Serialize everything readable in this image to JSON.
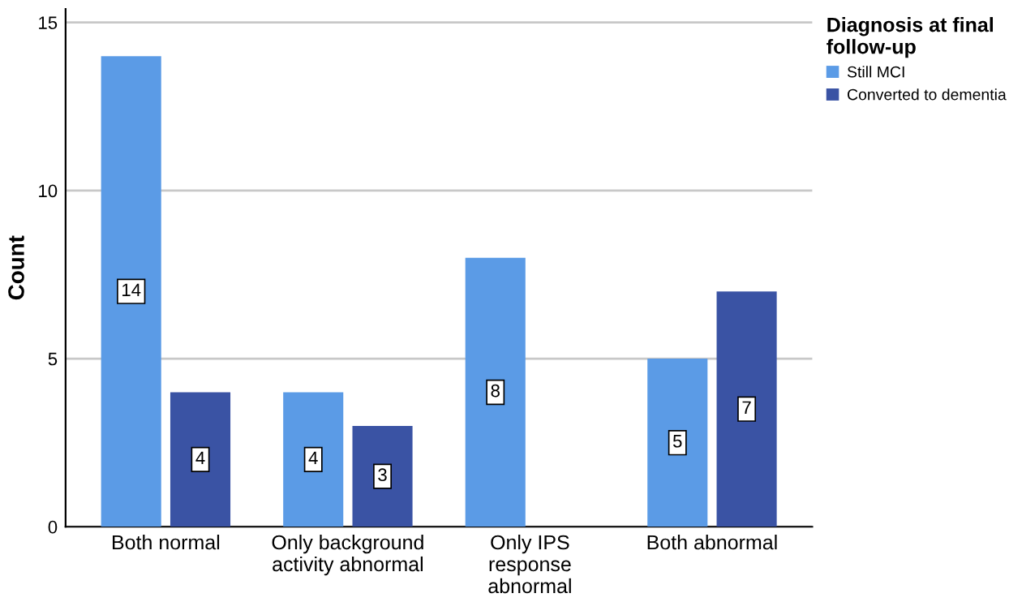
{
  "chart_data": {
    "type": "bar",
    "ylabel": "Count",
    "legend_title": "Diagnosis at final\nfollow-up",
    "categories": [
      "Both normal",
      "Only background\nactivity abnormal",
      "Only IPS\nresponse\nabnormal",
      "Both abnormal"
    ],
    "series": [
      {
        "name": "Still MCI",
        "color": "#5b9be6",
        "values": [
          14,
          4,
          8,
          5
        ]
      },
      {
        "name": "Converted to dementia",
        "color": "#3a53a4",
        "values": [
          4,
          3,
          null,
          7
        ]
      }
    ],
    "ylim": [
      0,
      15.4
    ],
    "yticks": [
      0,
      5,
      10,
      15
    ],
    "grid": "y",
    "legend": "top right",
    "data_labels": true
  }
}
